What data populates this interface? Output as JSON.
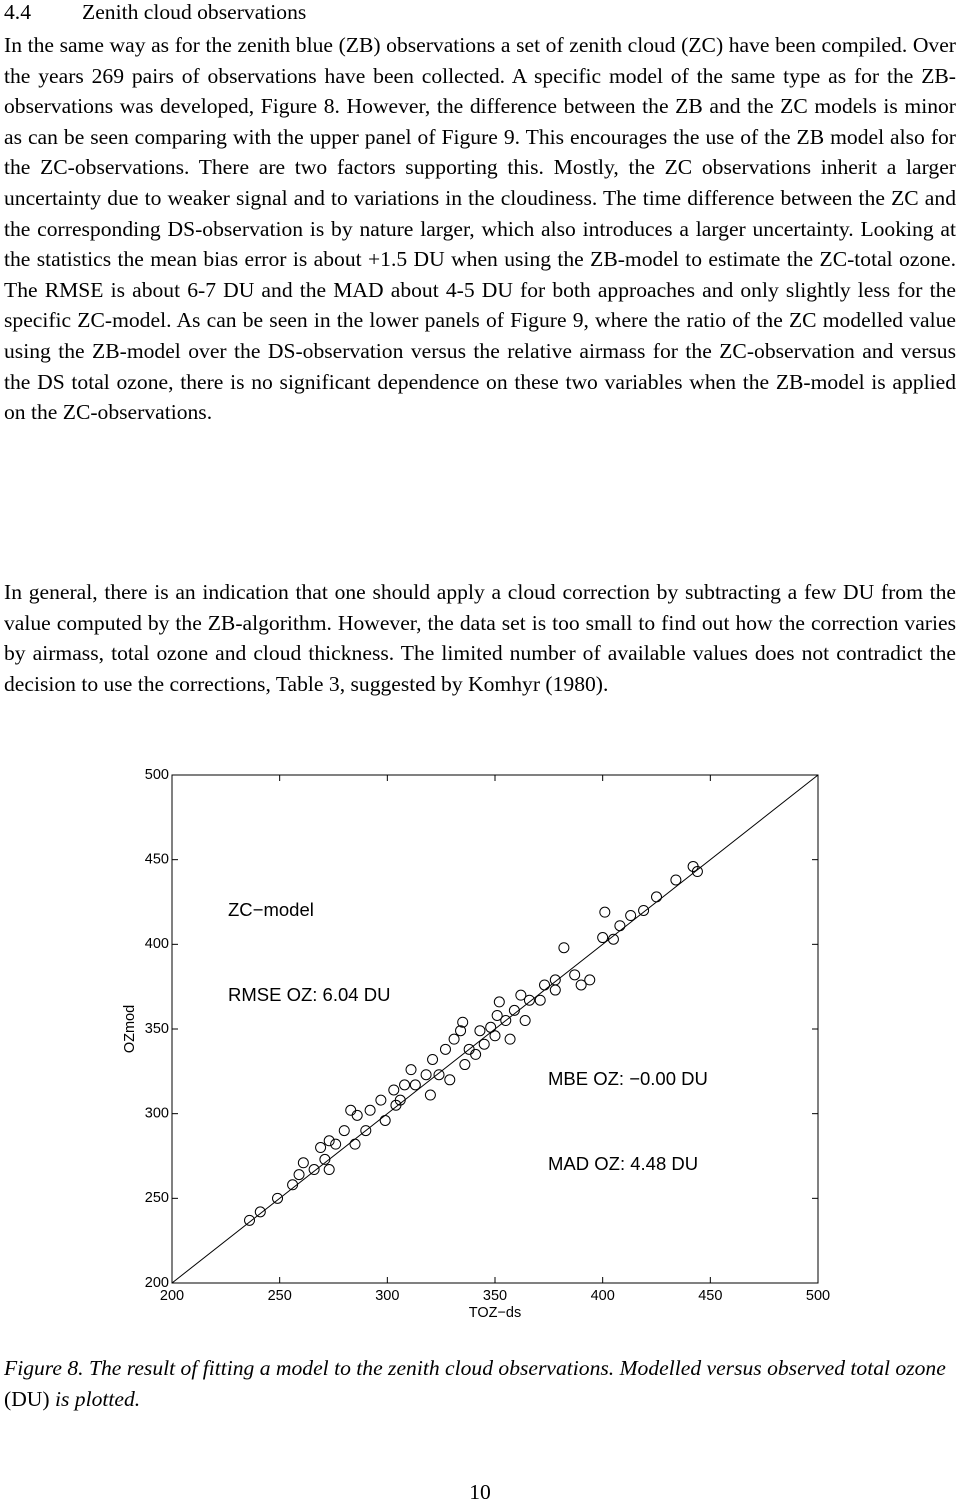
{
  "heading": {
    "number": "4.4",
    "title": "Zenith cloud observations"
  },
  "paragraphs": [
    "In the same way as for the zenith blue (ZB) observations a set of zenith cloud (ZC) have been compiled. Over the years 269 pairs of observations have been collected. A specific model of the same type as for the ZB-observations was developed, Figure 8. However, the difference between the ZB and the ZC models is minor as can be seen comparing with the upper panel of Figure 9. This encourages the use of the ZB model also for the ZC-observations. There are two factors supporting this. Mostly, the ZC observations inherit a larger uncertainty due to weaker signal and to variations in the cloudiness. The time difference between the ZC and the corresponding DS-observation is by nature larger, which also introduces a larger uncertainty. Looking at the statistics the mean bias error is about +1.5 DU when using the ZB-model to estimate the ZC-total ozone. The RMSE is about 6-7 DU and the MAD about 4-5 DU for both approaches and only slightly less for the specific ZC-model. As can be seen in the lower panels of Figure 9, where the ratio of the ZC modelled value using the ZB-model over the DS-observation versus the relative airmass for the ZC-observation and versus the DS total ozone, there is no significant dependence on these two variables when the ZB-model is applied on the ZC-observations.",
    "In general, there is an indication that one should apply a cloud correction by subtracting a few DU from the value computed by the ZB-algorithm. However, the data set is too small to find out how the correction varies by airmass, total ozone and cloud thickness. The limited number of available values does not contradict the decision to use the corrections, Table 3, suggested by Komhyr (1980)."
  ],
  "chart_data": {
    "type": "scatter",
    "xlabel": "TOZ−ds",
    "ylabel": "OZmod",
    "annotations": [
      "ZC−model",
      "RMSE OZ: 6.04 DU",
      "MBE OZ: −0.00 DU",
      "MAD OZ: 4.48 DU"
    ],
    "x": [
      236,
      241,
      249,
      256,
      261,
      269,
      273,
      280,
      286,
      292,
      297,
      303,
      308,
      311,
      318,
      321,
      327,
      331,
      335,
      338,
      343,
      348,
      352,
      355,
      359,
      362,
      366,
      373,
      378,
      382,
      387,
      394,
      400,
      401,
      405,
      413,
      419,
      425,
      434,
      442,
      444,
      276,
      285,
      299,
      320,
      306,
      324,
      336,
      345,
      350,
      357,
      371,
      378,
      259,
      266,
      271,
      290,
      304,
      313,
      329,
      341,
      334,
      351,
      364,
      390,
      408,
      283,
      273
    ],
    "values": [
      237,
      242,
      250,
      258,
      271,
      280,
      284,
      290,
      299,
      302,
      308,
      314,
      317,
      326,
      323,
      332,
      338,
      344,
      354,
      338,
      349,
      351,
      366,
      355,
      361,
      370,
      367,
      376,
      379,
      398,
      382,
      379,
      404,
      419,
      403,
      417,
      420,
      428,
      438,
      446,
      443,
      282,
      282,
      296,
      311,
      308,
      323,
      329,
      341,
      346,
      344,
      367,
      373,
      264,
      267,
      273,
      290,
      305,
      317,
      320,
      335,
      349,
      358,
      355,
      376,
      411,
      302,
      267
    ],
    "color": "#000000",
    "xlim": [
      200,
      500
    ],
    "ylim": [
      200,
      500
    ],
    "xticks": [
      200,
      250,
      300,
      350,
      400,
      450,
      500
    ],
    "yticks": [
      200,
      250,
      300,
      350,
      400,
      450,
      500
    ]
  },
  "caption": [
    "Figure 8. The result of fitting a model to the zenith cloud observations. Modelled versus observed total ozone",
    "(DU)",
    "is plotted."
  ],
  "page_number": "10"
}
